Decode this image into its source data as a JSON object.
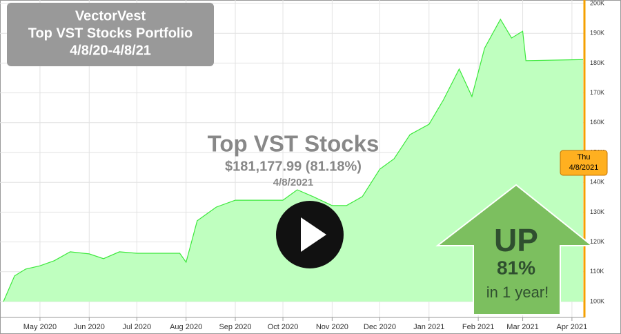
{
  "chart_data": {
    "type": "area",
    "title": "VectorVest",
    "subtitle": "Top VST Stocks Portfolio",
    "period": "4/8/20-4/8/21",
    "overlay": {
      "name": "Top VST Stocks",
      "value": "$181,177.99 (81.18%)",
      "date": "4/8/2021"
    },
    "callout": {
      "line1": "UP",
      "line2": "81%",
      "line3": "in 1 year!"
    },
    "flag": {
      "day": "Thu",
      "date": "4/8/2021"
    },
    "x": [
      "2020-04-08",
      "2020-04-15",
      "2020-04-22",
      "2020-05-01",
      "2020-05-10",
      "2020-05-20",
      "2020-06-01",
      "2020-06-10",
      "2020-06-20",
      "2020-07-01",
      "2020-07-15",
      "2020-07-28",
      "2020-08-01",
      "2020-08-08",
      "2020-08-20",
      "2020-09-01",
      "2020-09-15",
      "2020-10-01",
      "2020-10-10",
      "2020-10-20",
      "2020-11-01",
      "2020-11-10",
      "2020-11-20",
      "2020-12-01",
      "2020-12-10",
      "2020-12-20",
      "2021-01-01",
      "2021-01-10",
      "2021-01-20",
      "2021-01-28",
      "2021-02-05",
      "2021-02-15",
      "2021-02-22",
      "2021-03-01",
      "2021-03-03",
      "2021-04-08"
    ],
    "series": [
      {
        "name": "Top VST Stocks",
        "color": "#3be83b",
        "fill": "#bfffbf",
        "values": [
          100,
          108.6,
          110.9,
          112,
          113.7,
          116.7,
          116,
          114.4,
          116.7,
          116.2,
          116.2,
          116.2,
          113.2,
          127.1,
          131.7,
          134,
          134,
          134,
          137.5,
          135.2,
          132.2,
          132.2,
          135.2,
          144.4,
          147.9,
          156,
          159.5,
          167.6,
          178,
          168.8,
          185,
          194.7,
          188.4,
          190.7,
          180.8,
          181.18
        ]
      }
    ],
    "xlim": [
      "2020-04-08",
      "2021-04-08"
    ],
    "xticks": [
      {
        "value": "2020-05-01",
        "label": "May 2020"
      },
      {
        "value": "2020-06-01",
        "label": "Jun 2020"
      },
      {
        "value": "2020-07-01",
        "label": "Jul 2020"
      },
      {
        "value": "2020-08-01",
        "label": "Aug 2020"
      },
      {
        "value": "2020-09-01",
        "label": "Sep 2020"
      },
      {
        "value": "2020-10-01",
        "label": "Oct 2020"
      },
      {
        "value": "2020-11-01",
        "label": "Nov 2020"
      },
      {
        "value": "2020-12-01",
        "label": "Dec 2020"
      },
      {
        "value": "2021-01-01",
        "label": "Jan 2021"
      },
      {
        "value": "2021-02-01",
        "label": "Feb 2021"
      },
      {
        "value": "2021-03-01",
        "label": "Mar 2021"
      },
      {
        "value": "2021-04-01",
        "label": "Apr 2021"
      }
    ],
    "ylim": [
      100,
      200
    ],
    "yticks": [
      {
        "value": 100,
        "label": "100K"
      },
      {
        "value": 110,
        "label": "110K"
      },
      {
        "value": 120,
        "label": "120K"
      },
      {
        "value": 130,
        "label": "130K"
      },
      {
        "value": 140,
        "label": "140K"
      },
      {
        "value": 150,
        "label": "150K"
      },
      {
        "value": 160,
        "label": "160K"
      },
      {
        "value": 170,
        "label": "170K"
      },
      {
        "value": 180,
        "label": "180K"
      },
      {
        "value": 190,
        "label": "190K"
      },
      {
        "value": 200,
        "label": "200K"
      }
    ],
    "grid": true
  }
}
